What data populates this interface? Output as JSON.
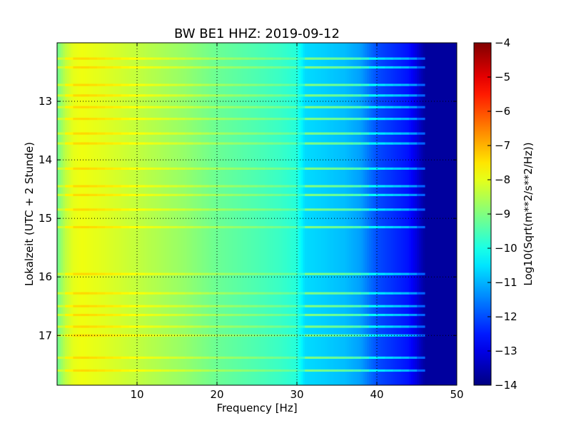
{
  "chart_data": {
    "type": "heatmap",
    "title": "BW BE1 HHZ: 2019-09-12",
    "xlabel": "Frequency [Hz]",
    "ylabel": "Lokalzeit (UTC + 2 Stunde)",
    "colorbar_label": "Log10(Sqrt(m**2/s**2/Hz))",
    "xlim": [
      0,
      50
    ],
    "ylim": [
      12.0,
      17.85
    ],
    "y_inverted": true,
    "x_ticks": [
      10,
      20,
      30,
      40,
      50
    ],
    "y_ticks": [
      13,
      14,
      15,
      16,
      17
    ],
    "colorbar_range": [
      -14,
      -4
    ],
    "colorbar_ticks": [
      -4,
      -5,
      -6,
      -7,
      -8,
      -9,
      -10,
      -11,
      -12,
      -13,
      -14
    ],
    "colormap": "jet",
    "grid": true,
    "frequency_profile": {
      "x": [
        0,
        1,
        2,
        3,
        5,
        8,
        12,
        16,
        20,
        25,
        28,
        30,
        31,
        33,
        36,
        38,
        40,
        42,
        44,
        45,
        46,
        50
      ],
      "y": [
        -9.2,
        -8.4,
        -8.0,
        -7.9,
        -8.0,
        -8.2,
        -8.5,
        -8.8,
        -9.2,
        -9.5,
        -9.7,
        -9.9,
        -10.6,
        -10.7,
        -10.9,
        -11.2,
        -12.0,
        -12.3,
        -12.6,
        -13.1,
        -13.7,
        -13.7
      ]
    },
    "bright_bands_hours": [
      12.27,
      12.42,
      12.72,
      12.9,
      13.1,
      13.3,
      13.55,
      13.72,
      14.15,
      14.45,
      14.6,
      14.85,
      15.15,
      15.95,
      16.28,
      16.5,
      16.65,
      16.85,
      17.0,
      17.38,
      17.6
    ]
  }
}
